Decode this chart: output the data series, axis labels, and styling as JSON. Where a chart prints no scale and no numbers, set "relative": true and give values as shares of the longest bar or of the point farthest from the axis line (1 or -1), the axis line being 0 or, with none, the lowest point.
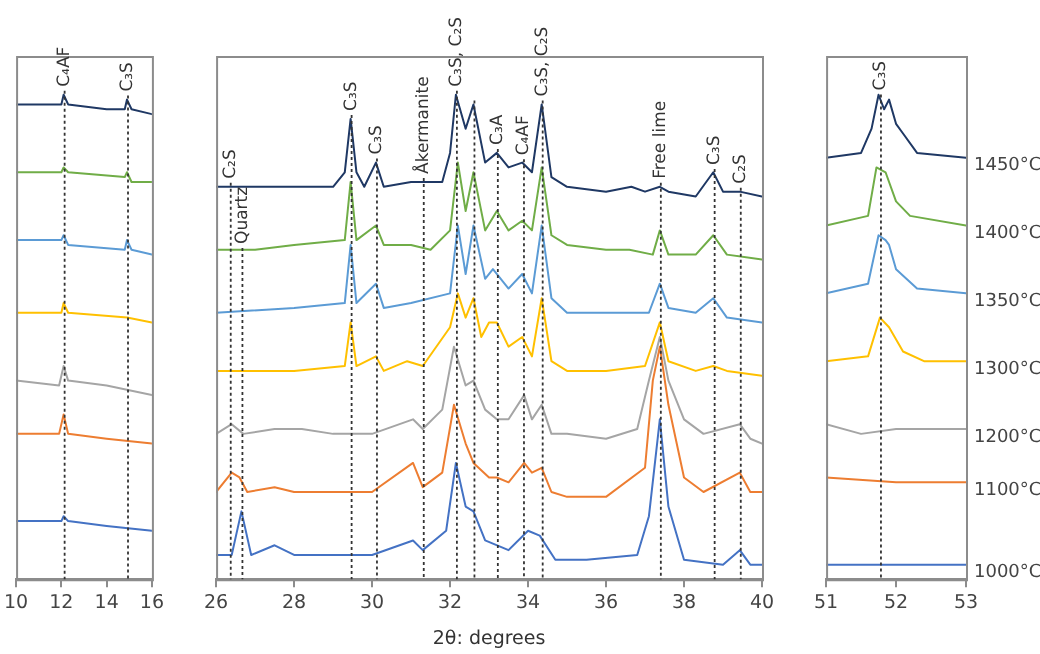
{
  "chart_data": [
    {
      "type": "line",
      "relative": true,
      "xlim": [
        10,
        16
      ],
      "xticks": [
        10,
        12,
        14,
        16
      ],
      "tick_labels": "x",
      "ref_lines": [
        {
          "axis": "x",
          "value": 12.1,
          "label": "C₄AF",
          "color": "#333333",
          "line_style": "dotted"
        },
        {
          "axis": "x",
          "value": 14.9,
          "label": "C₃S",
          "color": "#333333",
          "line_style": "dotted"
        }
      ],
      "series": [
        {
          "color": "#1f3864",
          "x": [
            10,
            11.5,
            12,
            12.1,
            12.3,
            14,
            14.8,
            14.9,
            15.1,
            16
          ],
          "values": [
            0.98,
            0.98,
            0.98,
            1,
            0.98,
            0.97,
            0.97,
            0.99,
            0.97,
            0.96
          ]
        },
        {
          "color": "#70ad47",
          "x": [
            10,
            12,
            12.1,
            12.3,
            14.8,
            14.9,
            15.1,
            16
          ],
          "values": [
            0.84,
            0.84,
            0.85,
            0.84,
            0.83,
            0.84,
            0.82,
            0.82
          ]
        },
        {
          "color": "#5b9bd5",
          "x": [
            10,
            12,
            12.1,
            12.3,
            14.8,
            14.9,
            15.1,
            16
          ],
          "values": [
            0.7,
            0.7,
            0.71,
            0.69,
            0.68,
            0.7,
            0.68,
            0.67
          ]
        },
        {
          "color": "#ffc000",
          "x": [
            10,
            12,
            12.1,
            12.3,
            14.9,
            16
          ],
          "values": [
            0.55,
            0.55,
            0.57,
            0.55,
            0.54,
            0.53
          ]
        },
        {
          "color": "#a5a5a5",
          "x": [
            10,
            11.9,
            12.1,
            12.3,
            14,
            16
          ],
          "values": [
            0.41,
            0.4,
            0.44,
            0.41,
            0.4,
            0.38
          ]
        },
        {
          "color": "#ed7d31",
          "x": [
            10,
            11.9,
            12.1,
            12.3,
            14,
            16
          ],
          "values": [
            0.3,
            0.3,
            0.34,
            0.3,
            0.29,
            0.28
          ]
        },
        {
          "color": "#4472c4",
          "x": [
            10,
            12,
            12.1,
            12.3,
            14,
            16
          ],
          "values": [
            0.12,
            0.12,
            0.13,
            0.12,
            0.11,
            0.1
          ]
        }
      ]
    },
    {
      "type": "line",
      "relative": true,
      "xlabel": "2θ: degrees",
      "xlim": [
        26,
        40
      ],
      "xticks": [
        26,
        28,
        30,
        32,
        34,
        36,
        38,
        40
      ],
      "tick_labels": "x",
      "ref_lines": [
        {
          "axis": "x",
          "value": 26.35,
          "label": "C₂S",
          "color": "#333333",
          "line_style": "dotted"
        },
        {
          "axis": "x",
          "value": 26.65,
          "label": "Quartz",
          "color": "#333333",
          "line_style": "dotted"
        },
        {
          "axis": "x",
          "value": 29.45,
          "label": "C₃S",
          "color": "#333333",
          "line_style": "dotted"
        },
        {
          "axis": "x",
          "value": 30.1,
          "label": "C₃S",
          "color": "#333333",
          "line_style": "dotted"
        },
        {
          "axis": "x",
          "value": 31.3,
          "label": "Åkermanite",
          "color": "#333333",
          "line_style": "dotted"
        },
        {
          "axis": "x",
          "value": 32.15,
          "label": "C₃S, C₂S",
          "color": "#333333",
          "line_style": "dotted"
        },
        {
          "axis": "x",
          "value": 32.6,
          "color": "#333333",
          "line_style": "dotted"
        },
        {
          "axis": "x",
          "value": 33.2,
          "label": "C₃A",
          "color": "#333333",
          "line_style": "dotted"
        },
        {
          "axis": "x",
          "value": 33.87,
          "label": "C₄AF",
          "color": "#333333",
          "line_style": "dotted"
        },
        {
          "axis": "x",
          "value": 34.35,
          "label": "C₃S, C₂S",
          "color": "#333333",
          "line_style": "dotted"
        },
        {
          "axis": "x",
          "value": 37.38,
          "label": "Free lime",
          "color": "#333333",
          "line_style": "dotted"
        },
        {
          "axis": "x",
          "value": 38.76,
          "label": "C₃S",
          "color": "#333333",
          "line_style": "dotted"
        },
        {
          "axis": "x",
          "value": 39.43,
          "label": "C₂S",
          "color": "#333333",
          "line_style": "dotted"
        }
      ],
      "series": [
        {
          "color": "#1f3864",
          "x": [
            26,
            26.4,
            27,
            28,
            29,
            29.3,
            29.45,
            29.6,
            29.8,
            30.1,
            30.3,
            31,
            31.8,
            32,
            32.15,
            32.4,
            32.6,
            32.9,
            33.2,
            33.5,
            33.85,
            34.1,
            34.35,
            34.6,
            35,
            36,
            36.65,
            37,
            37.38,
            37.6,
            38.3,
            38.75,
            39,
            39.43,
            40
          ],
          "values": [
            0.81,
            0.81,
            0.81,
            0.81,
            0.81,
            0.84,
            0.95,
            0.84,
            0.81,
            0.86,
            0.81,
            0.82,
            0.82,
            0.88,
            1,
            0.93,
            0.98,
            0.86,
            0.88,
            0.85,
            0.86,
            0.84,
            0.98,
            0.83,
            0.81,
            0.8,
            0.81,
            0.8,
            0.81,
            0.8,
            0.79,
            0.84,
            0.8,
            0.8,
            0.79
          ]
        },
        {
          "color": "#70ad47",
          "x": [
            26,
            27,
            28,
            29.3,
            29.45,
            29.6,
            30.1,
            30.3,
            31,
            31.5,
            32,
            32.2,
            32.4,
            32.6,
            32.9,
            33.2,
            33.5,
            33.85,
            34.1,
            34.35,
            34.6,
            35,
            36,
            36.6,
            37.2,
            37.38,
            37.6,
            38.3,
            38.75,
            39.1,
            40
          ],
          "values": [
            0.68,
            0.68,
            0.69,
            0.7,
            0.82,
            0.7,
            0.73,
            0.69,
            0.69,
            0.68,
            0.72,
            0.86,
            0.76,
            0.84,
            0.72,
            0.76,
            0.72,
            0.74,
            0.72,
            0.85,
            0.71,
            0.69,
            0.68,
            0.68,
            0.67,
            0.72,
            0.67,
            0.67,
            0.71,
            0.67,
            0.66
          ]
        },
        {
          "color": "#5b9bd5",
          "x": [
            26,
            28,
            29.3,
            29.45,
            29.6,
            30.1,
            30.3,
            31,
            32,
            32.2,
            32.4,
            32.6,
            32.9,
            33.1,
            33.5,
            33.85,
            34.1,
            34.35,
            34.6,
            35,
            36,
            37.1,
            37.38,
            37.6,
            38.3,
            38.75,
            39.1,
            40
          ],
          "values": [
            0.55,
            0.56,
            0.57,
            0.69,
            0.57,
            0.61,
            0.56,
            0.57,
            0.59,
            0.73,
            0.63,
            0.73,
            0.62,
            0.64,
            0.6,
            0.63,
            0.59,
            0.73,
            0.58,
            0.55,
            0.55,
            0.55,
            0.61,
            0.56,
            0.55,
            0.58,
            0.54,
            0.53
          ]
        },
        {
          "color": "#ffc000",
          "x": [
            26,
            28,
            29.3,
            29.45,
            29.6,
            30.1,
            30.3,
            30.9,
            31.3,
            32,
            32.2,
            32.4,
            32.6,
            32.8,
            33,
            33.2,
            33.5,
            33.85,
            34.1,
            34.35,
            34.6,
            35,
            36,
            37,
            37.38,
            37.6,
            38.3,
            38.75,
            39.1,
            40
          ],
          "values": [
            0.43,
            0.43,
            0.44,
            0.53,
            0.44,
            0.46,
            0.43,
            0.45,
            0.44,
            0.52,
            0.59,
            0.54,
            0.58,
            0.5,
            0.53,
            0.53,
            0.48,
            0.5,
            0.46,
            0.58,
            0.45,
            0.43,
            0.43,
            0.44,
            0.53,
            0.45,
            0.43,
            0.44,
            0.43,
            0.42
          ]
        },
        {
          "color": "#a5a5a5",
          "x": [
            26,
            26.4,
            26.7,
            27.5,
            28.2,
            29,
            30,
            31.05,
            31.3,
            31.8,
            32.1,
            32.4,
            32.6,
            32.9,
            33.2,
            33.5,
            33.9,
            34.1,
            34.35,
            34.6,
            35,
            36,
            36.8,
            37.1,
            37.38,
            37.6,
            38,
            38.5,
            39.43,
            39.7,
            40
          ],
          "values": [
            0.3,
            0.32,
            0.3,
            0.31,
            0.31,
            0.3,
            0.3,
            0.33,
            0.31,
            0.35,
            0.48,
            0.4,
            0.41,
            0.35,
            0.33,
            0.33,
            0.38,
            0.33,
            0.36,
            0.3,
            0.3,
            0.29,
            0.31,
            0.41,
            0.5,
            0.41,
            0.33,
            0.3,
            0.32,
            0.29,
            0.28
          ]
        },
        {
          "color": "#ed7d31",
          "x": [
            26,
            26.4,
            26.6,
            26.8,
            27.5,
            28,
            29,
            30,
            31.05,
            31.3,
            31.8,
            32.1,
            32.4,
            32.6,
            33,
            33.2,
            33.5,
            33.9,
            34.1,
            34.35,
            34.6,
            35,
            36,
            37,
            37.2,
            37.38,
            37.6,
            38,
            38.5,
            39.43,
            39.7,
            40
          ],
          "values": [
            0.18,
            0.22,
            0.21,
            0.18,
            0.19,
            0.18,
            0.18,
            0.18,
            0.24,
            0.19,
            0.22,
            0.36,
            0.28,
            0.24,
            0.21,
            0.21,
            0.2,
            0.24,
            0.22,
            0.23,
            0.18,
            0.17,
            0.17,
            0.23,
            0.41,
            0.48,
            0.36,
            0.21,
            0.18,
            0.22,
            0.18,
            0.18
          ]
        },
        {
          "color": "#4472c4",
          "x": [
            26,
            26.4,
            26.65,
            26.9,
            27.5,
            28,
            30,
            31.05,
            31.3,
            31.9,
            32.15,
            32.4,
            32.6,
            32.9,
            33.5,
            34,
            34.3,
            34.7,
            35.5,
            36.8,
            37.1,
            37.38,
            37.6,
            38,
            39,
            39.43,
            39.7,
            40
          ],
          "values": [
            0.05,
            0.05,
            0.14,
            0.05,
            0.07,
            0.05,
            0.05,
            0.08,
            0.06,
            0.1,
            0.24,
            0.15,
            0.14,
            0.08,
            0.06,
            0.1,
            0.09,
            0.04,
            0.04,
            0.05,
            0.13,
            0.33,
            0.15,
            0.04,
            0.03,
            0.06,
            0.03,
            0.03
          ]
        }
      ]
    },
    {
      "type": "line",
      "relative": true,
      "xlim": [
        51,
        53
      ],
      "xticks": [
        51,
        52,
        53
      ],
      "tick_labels": "x",
      "ref_lines": [
        {
          "axis": "x",
          "value": 51.77,
          "label": "C₃S",
          "color": "#333333",
          "line_style": "dotted"
        }
      ],
      "series": [
        {
          "name": "1450°C",
          "color": "#1f3864",
          "x": [
            51,
            51.5,
            51.65,
            51.75,
            51.83,
            51.9,
            52,
            52.1,
            52.3,
            53
          ],
          "values": [
            0.87,
            0.88,
            0.93,
            1,
            0.97,
            0.99,
            0.94,
            0.92,
            0.88,
            0.87
          ]
        },
        {
          "name": "1400°C",
          "color": "#70ad47",
          "x": [
            51,
            51.6,
            51.72,
            51.85,
            52,
            52.2,
            53
          ],
          "values": [
            0.73,
            0.75,
            0.85,
            0.84,
            0.78,
            0.75,
            0.73
          ]
        },
        {
          "name": "1350°C",
          "color": "#5b9bd5",
          "x": [
            51,
            51.6,
            51.75,
            51.85,
            51.9,
            52,
            52.3,
            53
          ],
          "values": [
            0.59,
            0.61,
            0.71,
            0.7,
            0.69,
            0.64,
            0.6,
            0.59
          ]
        },
        {
          "name": "1300°C",
          "color": "#ffc000",
          "x": [
            51,
            51.6,
            51.77,
            51.9,
            52.1,
            52.4,
            53
          ],
          "values": [
            0.45,
            0.46,
            0.54,
            0.52,
            0.47,
            0.45,
            0.45
          ]
        },
        {
          "name": "1200°C",
          "color": "#a5a5a5",
          "x": [
            51,
            51.5,
            52,
            53
          ],
          "values": [
            0.32,
            0.3,
            0.31,
            0.31
          ]
        },
        {
          "name": "1100°C",
          "color": "#ed7d31",
          "x": [
            51,
            52,
            53
          ],
          "values": [
            0.21,
            0.2,
            0.2
          ]
        },
        {
          "name": "1000°C",
          "color": "#4472c4",
          "x": [
            51,
            52,
            53
          ],
          "values": [
            0.03,
            0.03,
            0.03
          ]
        }
      ]
    }
  ]
}
